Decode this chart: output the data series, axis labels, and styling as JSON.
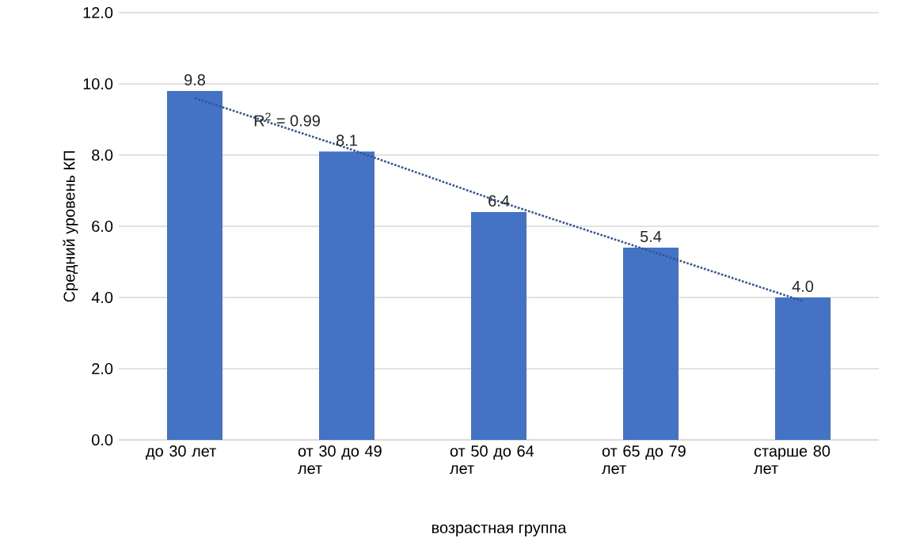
{
  "chart_data": {
    "type": "bar",
    "xlabel": "возрастная группа",
    "ylabel": "Средний уровень КП",
    "categories": [
      "до 30 лет",
      "от 30 до 49 лет",
      "от 50 до 64 лет",
      "от 65 до 79 лет",
      "старше 80 лет"
    ],
    "series": [
      {
        "color": "#4472c4",
        "values": [
          9.8,
          8.1,
          6.4,
          5.4,
          4.0
        ],
        "value_labels": [
          "9.8",
          "8.1",
          "6.4",
          "5.4",
          "4.0"
        ]
      },
      {
        "type": "line",
        "color": "#2f5597",
        "line_style": "dotted",
        "values": [
          9.6,
          8.2,
          6.7,
          5.3,
          3.9
        ]
      }
    ],
    "ylim": [
      0,
      12
    ],
    "yticks": [
      {
        "value": 0,
        "label": "0.0"
      },
      {
        "value": 2,
        "label": "2.0"
      },
      {
        "value": 4,
        "label": "4.0"
      },
      {
        "value": 6,
        "label": "6.0"
      },
      {
        "value": 8,
        "label": "8.0"
      },
      {
        "value": 10,
        "label": "10.0"
      },
      {
        "value": 12,
        "label": "12.0"
      }
    ],
    "grid": "y",
    "annotations": [
      "R$^{2}$ = 0.99"
    ]
  }
}
